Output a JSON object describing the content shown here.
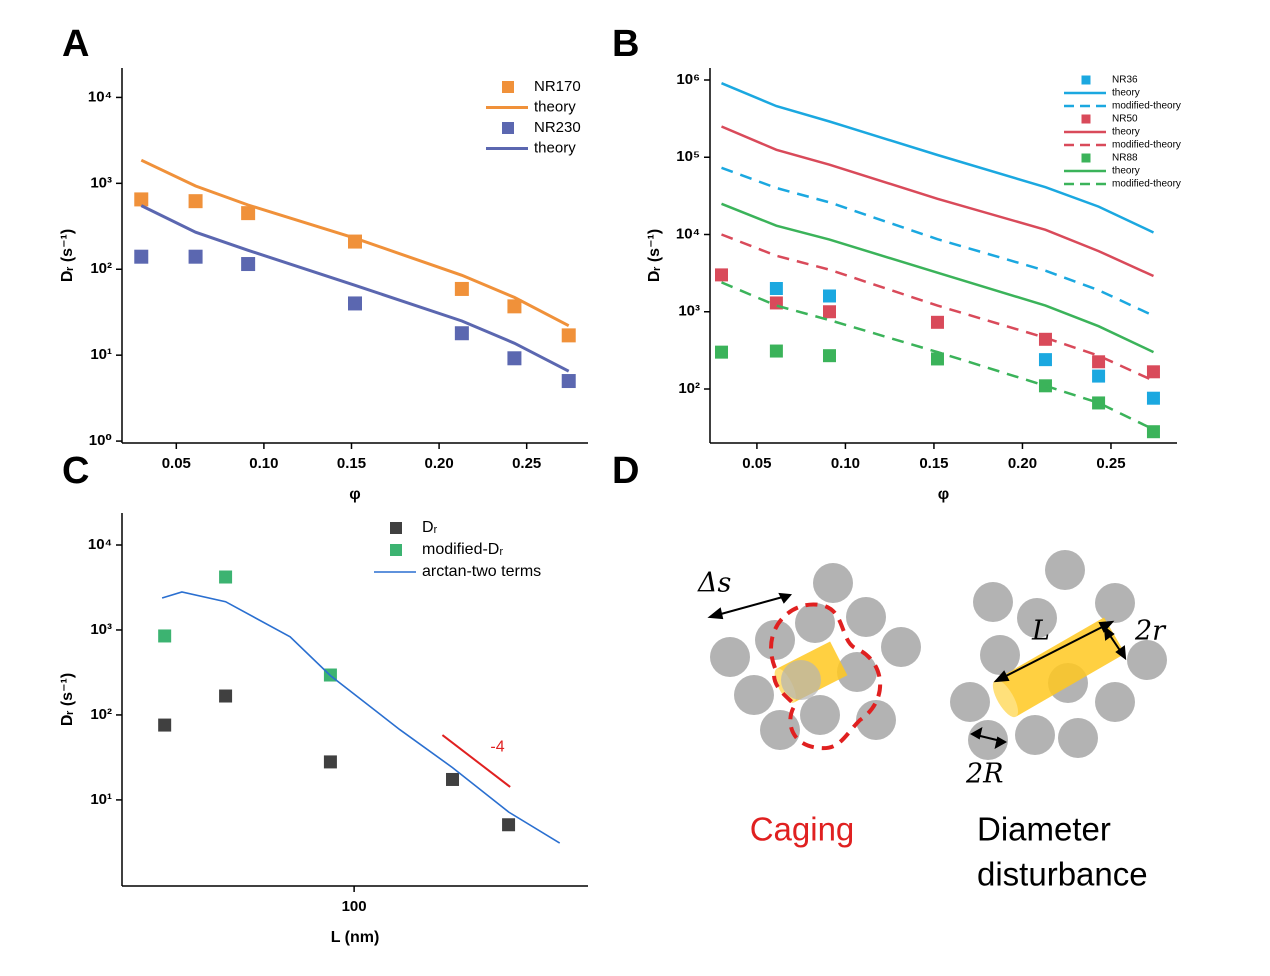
{
  "chart_data": [
    {
      "panel": "A",
      "type": "line",
      "xlabel": "φ",
      "ylabel": "Dᵣ (s⁻¹)",
      "ylog": true,
      "legend": "upper right",
      "xlim": [
        0.019,
        0.285
      ],
      "ylim": [
        0.95,
        22000
      ],
      "xticks": [
        0.05,
        {
          "value": 0.1,
          "label": "0.10"
        },
        0.15,
        {
          "value": 0.2,
          "label": "0.20"
        },
        0.25
      ],
      "yticks": [
        {
          "value": 1,
          "label": "10⁰"
        },
        {
          "value": 10,
          "label": "10¹"
        },
        {
          "value": 100,
          "label": "10²"
        },
        {
          "value": 1000,
          "label": "10³"
        },
        {
          "value": 10000,
          "label": "10⁴"
        }
      ],
      "x": [
        0.03,
        0.061,
        0.091,
        0.152,
        0.213,
        0.243,
        0.274
      ],
      "series": [
        {
          "name": "NR170",
          "style": "marker",
          "color": "#f0913a",
          "values": [
            650,
            620,
            450,
            210,
            59,
            37,
            17
          ]
        },
        {
          "name": "theory",
          "style": "line",
          "color": "#f0913a",
          "values": [
            1860,
            930,
            560,
            230,
            85,
            47,
            22
          ]
        },
        {
          "name": "NR230",
          "style": "marker",
          "color": "#5b67b0",
          "values": [
            140,
            140,
            115,
            40,
            18,
            9.2,
            5
          ]
        },
        {
          "name": "theory",
          "style": "line",
          "color": "#5b67b0",
          "values": [
            550,
            270,
            166,
            65,
            25,
            13.8,
            6.5
          ]
        }
      ]
    },
    {
      "panel": "B",
      "type": "line",
      "xlabel": "φ",
      "ylabel": "Dᵣ (s⁻¹)",
      "ylog": true,
      "legend": "upper right",
      "xlim": [
        0.0235,
        0.2873
      ],
      "ylim": [
        20,
        1430000
      ],
      "xticks": [
        0.05,
        {
          "value": 0.1,
          "label": "0.10"
        },
        0.15,
        {
          "value": 0.2,
          "label": "0.20"
        },
        0.25
      ],
      "yticks": [
        {
          "value": 100,
          "label": "10²"
        },
        {
          "value": 1000,
          "label": "10³"
        },
        {
          "value": 10000,
          "label": "10⁴"
        },
        {
          "value": 100000,
          "label": "10⁵"
        },
        {
          "value": 1000000,
          "label": "10⁶"
        }
      ],
      "x": [
        0.03,
        0.061,
        0.091,
        0.152,
        0.213,
        0.243,
        0.274
      ],
      "series": [
        {
          "name": "NR36",
          "style": "marker",
          "color": "#1ba8e0",
          "values": [
            null,
            2000,
            1600,
            null,
            240,
            147,
            76
          ]
        },
        {
          "name": "theory",
          "style": "line",
          "color": "#1ba8e0",
          "values": [
            910000,
            460000,
            290000,
            107000,
            41000,
            23000,
            10600
          ]
        },
        {
          "name": "modified-theory",
          "style": "dashed",
          "color": "#1ba8e0",
          "values": [
            73000,
            40000,
            26000,
            8700,
            3400,
            1900,
            890
          ]
        },
        {
          "name": "NR50",
          "style": "marker",
          "color": "#d94a5a",
          "values": [
            3000,
            1300,
            1000,
            730,
            440,
            225,
            167
          ]
        },
        {
          "name": "theory",
          "style": "line",
          "color": "#d94a5a",
          "values": [
            250000,
            125000,
            80000,
            29000,
            11500,
            6100,
            2900
          ]
        },
        {
          "name": "modified-theory",
          "style": "dashed",
          "color": "#d94a5a",
          "values": [
            10000,
            5300,
            3500,
            1200,
            460,
            270,
            128
          ]
        },
        {
          "name": "NR88",
          "style": "marker",
          "color": "#3bb35a",
          "values": [
            300,
            310,
            270,
            245,
            110,
            66,
            28
          ]
        },
        {
          "name": "theory",
          "style": "line",
          "color": "#3bb35a",
          "values": [
            25000,
            13000,
            8600,
            3200,
            1200,
            650,
            300
          ]
        },
        {
          "name": "modified-theory",
          "style": "dashed",
          "color": "#3bb35a",
          "values": [
            2400,
            1200,
            780,
            300,
            110,
            66,
            30
          ]
        }
      ]
    },
    {
      "panel": "C",
      "type": "line",
      "xlabel": "L (nm)",
      "ylabel": "Dᵣ (s⁻¹)",
      "xlog": true,
      "ylog": true,
      "legend": "upper right",
      "xlim": [
        28.6,
        353
      ],
      "ylim": [
        0.97,
        23800
      ],
      "xticks": [
        100
      ],
      "yticks": [
        {
          "value": 10,
          "label": "10¹"
        },
        {
          "value": 100,
          "label": "10²"
        },
        {
          "value": 1000,
          "label": "10³"
        },
        {
          "value": 10000,
          "label": "10⁴"
        }
      ],
      "series": [
        {
          "name": "Dᵣ",
          "style": "marker",
          "color": "#404040",
          "x": [
            36,
            50,
            88,
            170,
            230
          ],
          "values": [
            76,
            167,
            28,
            17.4,
            5.1
          ]
        },
        {
          "name": "modified-Dᵣ",
          "style": "marker",
          "color": "#3cb371",
          "x": [
            36,
            50,
            88
          ],
          "values": [
            850,
            4200,
            295
          ]
        },
        {
          "name": "arctan-two terms",
          "style": "line",
          "color": "#2a6fd0",
          "x": [
            35.5,
            39.5,
            50,
            70.8,
            88,
            128,
            170,
            230,
            303
          ],
          "values": [
            2380,
            2800,
            2150,
            830,
            290,
            67,
            24,
            7.2,
            3.1
          ]
        }
      ],
      "annotation_line": {
        "x": [
          161,
          232
        ],
        "values": [
          58,
          14.2
        ],
        "color": "#e02020",
        "label": "-4"
      }
    }
  ],
  "diagram": {
    "panel": "D",
    "delta_s": "Δs",
    "length": "L",
    "rod_diameter": "2r",
    "particle_diameter": "2R",
    "caption_left": "Caging",
    "caption_right_1": "Diameter",
    "caption_right_2": "disturbance"
  }
}
